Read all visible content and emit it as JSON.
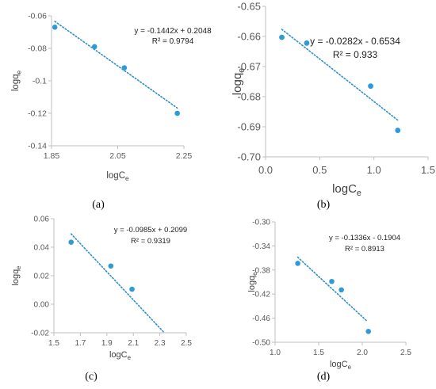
{
  "colors": {
    "marker": "#2E9BD6",
    "trend": "#2E8FCC",
    "axis": "#BFBFBF"
  },
  "chart_data": [
    {
      "panel": "(a)",
      "type": "scatter",
      "xlabel": "logCe",
      "ylabel": "logqe",
      "xlim": [
        1.85,
        2.25
      ],
      "ylim": [
        -0.14,
        -0.06
      ],
      "xticks": [
        "1.85",
        "2.05",
        "2.25"
      ],
      "yticks": [
        "-0.06",
        "-0.08",
        "-0.1",
        "-0.12",
        "-0.14"
      ],
      "points": [
        {
          "x": 1.86,
          "y": -0.067
        },
        {
          "x": 1.98,
          "y": -0.079
        },
        {
          "x": 2.07,
          "y": -0.092
        },
        {
          "x": 2.23,
          "y": -0.12
        }
      ],
      "trendline": {
        "slope": -0.1442,
        "intercept": 0.2048,
        "x_range": [
          1.86,
          2.23
        ]
      },
      "equation": "y = -0.1442x + 0.2048",
      "r2": "R² = 0.9794"
    },
    {
      "panel": "(b)",
      "type": "scatter",
      "xlabel": "logCe",
      "ylabel": "logqe",
      "xlim": [
        0,
        1.5
      ],
      "ylim": [
        -0.7,
        -0.65
      ],
      "xticks": [
        "0.0",
        "0.5",
        "1.0",
        "1.5"
      ],
      "yticks": [
        "-0.65",
        "-0.66",
        "-0.67",
        "-0.68",
        "-0.69",
        "-0.70"
      ],
      "points": [
        {
          "x": 0.15,
          "y": -0.6603
        },
        {
          "x": 0.38,
          "y": -0.6622
        },
        {
          "x": 0.97,
          "y": -0.6765
        },
        {
          "x": 1.22,
          "y": -0.6912
        }
      ],
      "trendline": {
        "slope": -0.0282,
        "intercept": -0.6534,
        "x_range": [
          0.15,
          1.22
        ]
      },
      "equation": "y = -0.0282x - 0.6534",
      "r2": "R² = 0.933"
    },
    {
      "panel": "(c)",
      "type": "scatter",
      "xlabel": "logCe",
      "ylabel": "logqe",
      "xlim": [
        1.5,
        2.5
      ],
      "ylim": [
        -0.02,
        0.06
      ],
      "xticks": [
        "1.5",
        "1.7",
        "1.9",
        "2.1",
        "2.3",
        "2.5"
      ],
      "yticks": [
        "0.06",
        "0.04",
        "0.02",
        "0.00",
        "-0.02"
      ],
      "points": [
        {
          "x": 1.63,
          "y": 0.0435
        },
        {
          "x": 1.93,
          "y": 0.0268
        },
        {
          "x": 2.09,
          "y": 0.0105
        }
      ],
      "trendline": {
        "slope": -0.0985,
        "intercept": 0.2099,
        "x_range": [
          1.63,
          2.33
        ]
      },
      "equation": "y = -0.0985x + 0.2099",
      "r2": "R² = 0.9319"
    },
    {
      "panel": "(d)",
      "type": "scatter",
      "xlabel": "logCe",
      "ylabel": "logqe",
      "xlim": [
        1.0,
        2.5
      ],
      "ylim": [
        -0.5,
        -0.3
      ],
      "xticks": [
        "1.0",
        "1.5",
        "2.0",
        "2.5"
      ],
      "yticks": [
        "-0.30",
        "-0.34",
        "-0.38",
        "-0.42",
        "-0.46",
        "-0.50"
      ],
      "points": [
        {
          "x": 1.26,
          "y": -0.369
        },
        {
          "x": 1.65,
          "y": -0.399
        },
        {
          "x": 1.76,
          "y": -0.413
        },
        {
          "x": 2.07,
          "y": -0.482
        }
      ],
      "trendline": {
        "slope": -0.1336,
        "intercept": -0.1904,
        "x_range": [
          1.26,
          2.06
        ]
      },
      "equation": "y = -0.1336x - 0.1904",
      "r2": "R² = 0.8913"
    }
  ]
}
